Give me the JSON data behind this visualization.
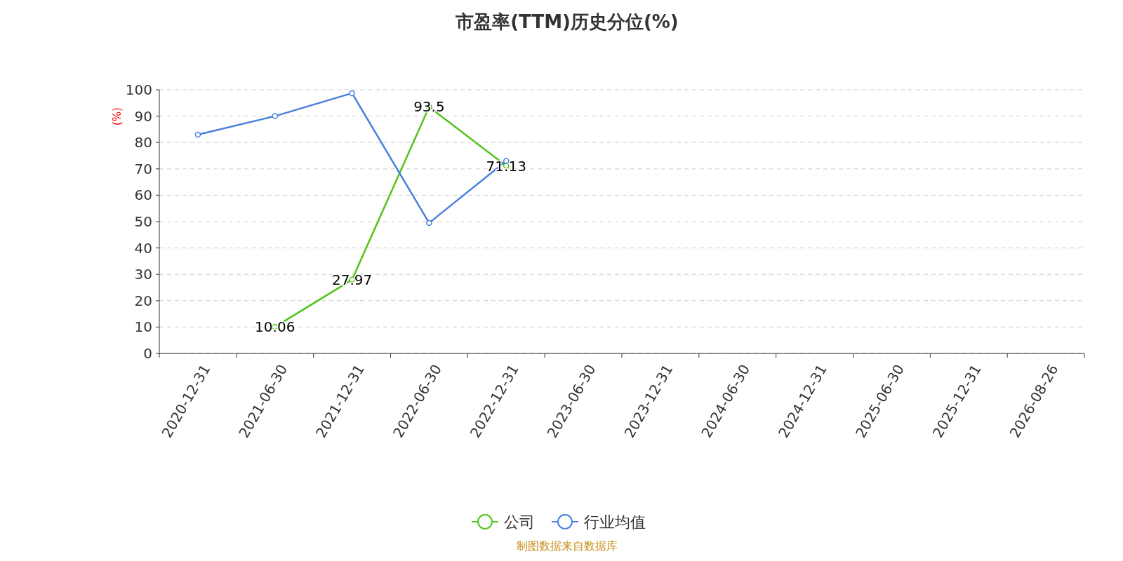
{
  "chart_data": {
    "type": "line",
    "title": "市盈率(TTM)历史分位(%)",
    "ylabel": "(%)",
    "categories": [
      "2020-12-31",
      "2021-06-30",
      "2021-12-31",
      "2022-06-30",
      "2022-12-31",
      "2023-06-30",
      "2023-12-31",
      "2024-06-30",
      "2024-12-31",
      "2025-06-30",
      "2025-12-31",
      "2026-08-26"
    ],
    "series": [
      {
        "name": "公司",
        "color": "#52c41a",
        "values": [
          null,
          10.06,
          27.97,
          93.5,
          71.13,
          null,
          null,
          null,
          null,
          null,
          null,
          null
        ],
        "value_labels": [
          null,
          "10.06",
          "27.97",
          "93.5",
          "71.13",
          null,
          null,
          null,
          null,
          null,
          null,
          null
        ]
      },
      {
        "name": "行业均值",
        "color": "#4a7fde",
        "values": [
          83,
          90,
          98.7,
          49.5,
          73,
          null,
          null,
          null,
          null,
          null,
          null,
          null
        ]
      }
    ],
    "ylim": [
      0,
      100
    ],
    "yticks": [
      0,
      10,
      20,
      30,
      40,
      50,
      60,
      70,
      80,
      90,
      100
    ],
    "grid": "y",
    "legend": "bottom",
    "marker": "circle",
    "line_style": "solid",
    "annotations": [
      "制图数据来自数据库"
    ]
  }
}
